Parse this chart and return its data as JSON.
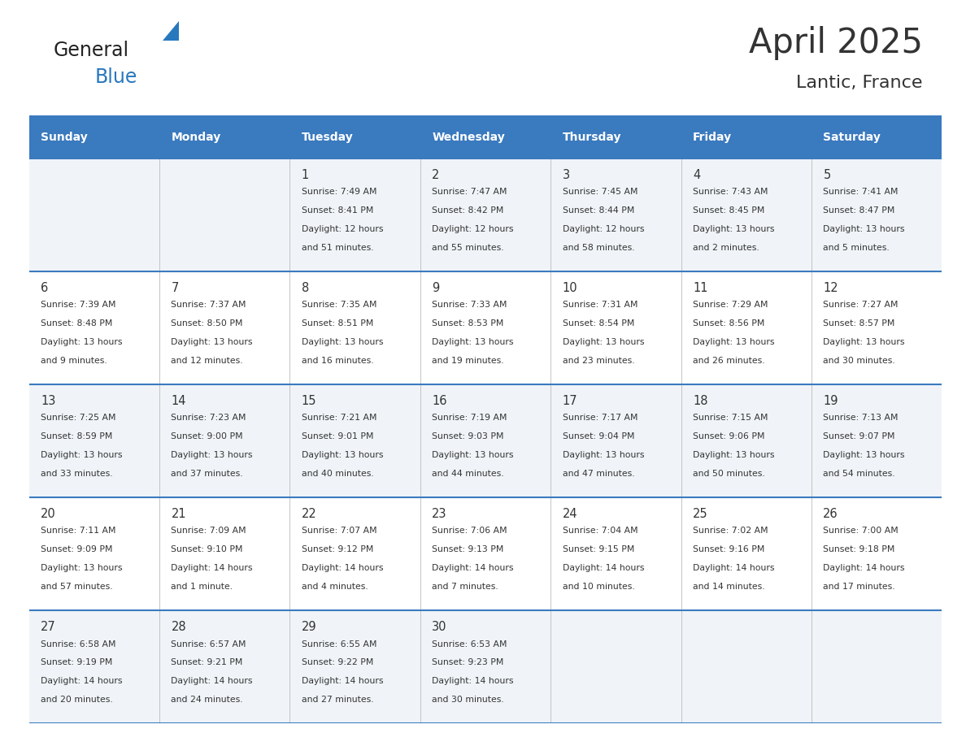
{
  "title": "April 2025",
  "subtitle": "Lantic, France",
  "header_color": "#3a7abf",
  "header_text_color": "#ffffff",
  "day_names": [
    "Sunday",
    "Monday",
    "Tuesday",
    "Wednesday",
    "Thursday",
    "Friday",
    "Saturday"
  ],
  "bg_color": "#ffffff",
  "row_bg": [
    "#f0f4f8",
    "#ffffff",
    "#f0f4f8",
    "#ffffff",
    "#f0f4f8"
  ],
  "text_color": "#333333",
  "line_color": "#3a7abf",
  "logo_general_color": "#222222",
  "logo_blue_color": "#2878be",
  "logo_triangle_color": "#2878be",
  "days": [
    {
      "day": null,
      "info": ""
    },
    {
      "day": null,
      "info": ""
    },
    {
      "day": 1,
      "info": "Sunrise: 7:49 AM\nSunset: 8:41 PM\nDaylight: 12 hours\nand 51 minutes."
    },
    {
      "day": 2,
      "info": "Sunrise: 7:47 AM\nSunset: 8:42 PM\nDaylight: 12 hours\nand 55 minutes."
    },
    {
      "day": 3,
      "info": "Sunrise: 7:45 AM\nSunset: 8:44 PM\nDaylight: 12 hours\nand 58 minutes."
    },
    {
      "day": 4,
      "info": "Sunrise: 7:43 AM\nSunset: 8:45 PM\nDaylight: 13 hours\nand 2 minutes."
    },
    {
      "day": 5,
      "info": "Sunrise: 7:41 AM\nSunset: 8:47 PM\nDaylight: 13 hours\nand 5 minutes."
    },
    {
      "day": 6,
      "info": "Sunrise: 7:39 AM\nSunset: 8:48 PM\nDaylight: 13 hours\nand 9 minutes."
    },
    {
      "day": 7,
      "info": "Sunrise: 7:37 AM\nSunset: 8:50 PM\nDaylight: 13 hours\nand 12 minutes."
    },
    {
      "day": 8,
      "info": "Sunrise: 7:35 AM\nSunset: 8:51 PM\nDaylight: 13 hours\nand 16 minutes."
    },
    {
      "day": 9,
      "info": "Sunrise: 7:33 AM\nSunset: 8:53 PM\nDaylight: 13 hours\nand 19 minutes."
    },
    {
      "day": 10,
      "info": "Sunrise: 7:31 AM\nSunset: 8:54 PM\nDaylight: 13 hours\nand 23 minutes."
    },
    {
      "day": 11,
      "info": "Sunrise: 7:29 AM\nSunset: 8:56 PM\nDaylight: 13 hours\nand 26 minutes."
    },
    {
      "day": 12,
      "info": "Sunrise: 7:27 AM\nSunset: 8:57 PM\nDaylight: 13 hours\nand 30 minutes."
    },
    {
      "day": 13,
      "info": "Sunrise: 7:25 AM\nSunset: 8:59 PM\nDaylight: 13 hours\nand 33 minutes."
    },
    {
      "day": 14,
      "info": "Sunrise: 7:23 AM\nSunset: 9:00 PM\nDaylight: 13 hours\nand 37 minutes."
    },
    {
      "day": 15,
      "info": "Sunrise: 7:21 AM\nSunset: 9:01 PM\nDaylight: 13 hours\nand 40 minutes."
    },
    {
      "day": 16,
      "info": "Sunrise: 7:19 AM\nSunset: 9:03 PM\nDaylight: 13 hours\nand 44 minutes."
    },
    {
      "day": 17,
      "info": "Sunrise: 7:17 AM\nSunset: 9:04 PM\nDaylight: 13 hours\nand 47 minutes."
    },
    {
      "day": 18,
      "info": "Sunrise: 7:15 AM\nSunset: 9:06 PM\nDaylight: 13 hours\nand 50 minutes."
    },
    {
      "day": 19,
      "info": "Sunrise: 7:13 AM\nSunset: 9:07 PM\nDaylight: 13 hours\nand 54 minutes."
    },
    {
      "day": 20,
      "info": "Sunrise: 7:11 AM\nSunset: 9:09 PM\nDaylight: 13 hours\nand 57 minutes."
    },
    {
      "day": 21,
      "info": "Sunrise: 7:09 AM\nSunset: 9:10 PM\nDaylight: 14 hours\nand 1 minute."
    },
    {
      "day": 22,
      "info": "Sunrise: 7:07 AM\nSunset: 9:12 PM\nDaylight: 14 hours\nand 4 minutes."
    },
    {
      "day": 23,
      "info": "Sunrise: 7:06 AM\nSunset: 9:13 PM\nDaylight: 14 hours\nand 7 minutes."
    },
    {
      "day": 24,
      "info": "Sunrise: 7:04 AM\nSunset: 9:15 PM\nDaylight: 14 hours\nand 10 minutes."
    },
    {
      "day": 25,
      "info": "Sunrise: 7:02 AM\nSunset: 9:16 PM\nDaylight: 14 hours\nand 14 minutes."
    },
    {
      "day": 26,
      "info": "Sunrise: 7:00 AM\nSunset: 9:18 PM\nDaylight: 14 hours\nand 17 minutes."
    },
    {
      "day": 27,
      "info": "Sunrise: 6:58 AM\nSunset: 9:19 PM\nDaylight: 14 hours\nand 20 minutes."
    },
    {
      "day": 28,
      "info": "Sunrise: 6:57 AM\nSunset: 9:21 PM\nDaylight: 14 hours\nand 24 minutes."
    },
    {
      "day": 29,
      "info": "Sunrise: 6:55 AM\nSunset: 9:22 PM\nDaylight: 14 hours\nand 27 minutes."
    },
    {
      "day": 30,
      "info": "Sunrise: 6:53 AM\nSunset: 9:23 PM\nDaylight: 14 hours\nand 30 minutes."
    },
    {
      "day": null,
      "info": ""
    },
    {
      "day": null,
      "info": ""
    },
    {
      "day": null,
      "info": ""
    }
  ]
}
